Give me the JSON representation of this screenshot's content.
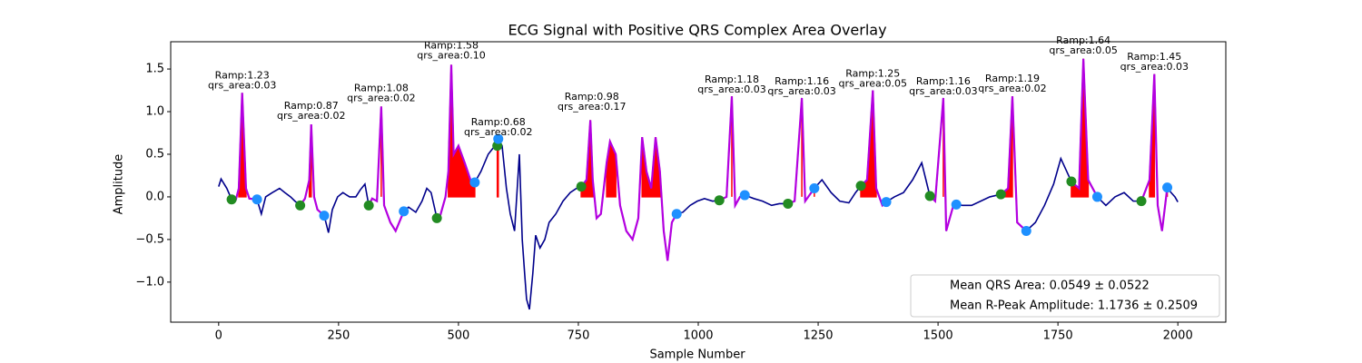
{
  "chart_data": {
    "type": "line",
    "title": "ECG Signal with Positive QRS Complex Area Overlay",
    "x_label": "Sample Number",
    "y_label": "Amplitude",
    "xlim": [
      -100,
      2100
    ],
    "ylim": [
      -1.47,
      1.82
    ],
    "xticks": [
      0,
      250,
      500,
      750,
      1000,
      1250,
      1500,
      1750,
      2000
    ],
    "yticks": [
      {
        "value": -1.0,
        "label": "−1.0"
      },
      {
        "value": -0.5,
        "label": "−0.5"
      },
      {
        "value": 0.0,
        "label": "0.0"
      },
      {
        "value": 0.5,
        "label": "0.5"
      },
      {
        "value": 1.0,
        "label": "1.0"
      },
      {
        "value": 1.5,
        "label": "1.5"
      }
    ],
    "x": [
      0,
      5,
      17,
      27,
      36,
      42,
      49,
      57,
      64,
      80,
      89,
      98,
      112,
      127,
      138,
      150,
      159,
      170,
      180,
      189,
      193,
      199,
      206,
      220,
      229,
      237,
      248,
      259,
      273,
      286,
      295,
      305,
      313,
      320,
      330,
      339,
      345,
      358,
      369,
      386,
      396,
      411,
      424,
      434,
      443,
      455,
      462,
      473,
      479,
      485,
      490,
      500,
      513,
      525,
      534,
      547,
      562,
      576,
      581,
      583,
      591,
      600,
      608,
      617,
      627,
      633,
      638,
      642,
      648,
      655,
      661,
      670,
      680,
      689,
      703,
      718,
      733,
      746,
      756,
      767,
      775,
      780,
      788,
      797,
      809,
      816,
      828,
      837,
      850,
      863,
      875,
      883,
      892,
      902,
      911,
      920,
      928,
      936,
      945,
      955,
      968,
      983,
      998,
      1013,
      1030,
      1044,
      1059,
      1070,
      1077,
      1087,
      1097,
      1116,
      1134,
      1153,
      1169,
      1187,
      1201,
      1216,
      1223,
      1242,
      1258,
      1277,
      1295,
      1314,
      1328,
      1339,
      1352,
      1364,
      1371,
      1384,
      1392,
      1409,
      1428,
      1447,
      1466,
      1483,
      1494,
      1511,
      1517,
      1532,
      1538,
      1551,
      1570,
      1589,
      1608,
      1631,
      1646,
      1655,
      1665,
      1684,
      1703,
      1722,
      1741,
      1756,
      1778,
      1794,
      1803,
      1813,
      1832,
      1850,
      1869,
      1888,
      1907,
      1924,
      1941,
      1951,
      1958,
      1967,
      1978,
      1986,
      1994,
      2000
    ],
    "series": [
      {
        "color": "#00008b",
        "values": [
          0.12,
          0.21,
          0.1,
          -0.03,
          -0.03,
          0.1,
          1.22,
          0.1,
          -0.02,
          -0.03,
          -0.2,
          0.0,
          0.05,
          0.1,
          0.05,
          0.0,
          -0.05,
          -0.1,
          -0.02,
          0.2,
          0.85,
          0.0,
          -0.15,
          -0.22,
          -0.42,
          -0.15,
          0.0,
          0.05,
          0.0,
          0.0,
          0.08,
          0.15,
          -0.1,
          -0.02,
          -0.05,
          1.06,
          -0.1,
          -0.3,
          -0.4,
          -0.17,
          -0.12,
          -0.18,
          -0.05,
          0.1,
          0.05,
          -0.25,
          -0.22,
          0.0,
          0.3,
          1.55,
          0.5,
          0.6,
          0.4,
          0.2,
          0.17,
          0.3,
          0.5,
          0.6,
          0.6,
          0.68,
          0.6,
          0.1,
          -0.2,
          -0.4,
          0.5,
          -0.5,
          -0.9,
          -1.2,
          -1.32,
          -0.9,
          -0.45,
          -0.6,
          -0.5,
          -0.3,
          -0.2,
          -0.05,
          0.05,
          0.1,
          0.12,
          0.2,
          0.9,
          0.2,
          -0.25,
          -0.2,
          0.4,
          0.65,
          0.5,
          -0.1,
          -0.4,
          -0.5,
          -0.25,
          0.7,
          0.3,
          0.1,
          0.7,
          0.3,
          -0.4,
          -0.75,
          -0.3,
          -0.2,
          -0.18,
          -0.1,
          -0.05,
          -0.02,
          -0.05,
          -0.04,
          0.0,
          1.18,
          -0.1,
          0.0,
          0.02,
          -0.02,
          -0.05,
          -0.1,
          -0.08,
          -0.08,
          -0.05,
          1.16,
          -0.05,
          0.1,
          0.2,
          0.05,
          -0.05,
          -0.07,
          0.05,
          0.13,
          0.2,
          1.25,
          0.1,
          -0.1,
          -0.06,
          0.0,
          0.05,
          0.2,
          0.4,
          0.01,
          -0.05,
          1.16,
          -0.4,
          -0.1,
          -0.09,
          -0.1,
          -0.1,
          -0.05,
          0.0,
          0.03,
          0.1,
          1.18,
          -0.3,
          -0.4,
          -0.3,
          -0.1,
          0.15,
          0.45,
          0.18,
          0.1,
          1.62,
          0.2,
          0.0,
          -0.1,
          0.0,
          0.05,
          -0.05,
          -0.05,
          0.2,
          1.44,
          -0.1,
          -0.4,
          0.11,
          0.05,
          0.0,
          -0.06
        ]
      }
    ],
    "qrs_color": "#b400e0",
    "area_color": "#ff0000",
    "onsets": {
      "color": "#228b22",
      "x": [
        27,
        170,
        313,
        455,
        581,
        756,
        1044,
        1187,
        1339,
        1483,
        1631,
        1778,
        1924
      ],
      "values": [
        -0.03,
        -0.1,
        -0.1,
        -0.25,
        0.6,
        0.12,
        -0.04,
        -0.08,
        0.13,
        0.01,
        0.03,
        0.18,
        -0.05
      ]
    },
    "offsets": {
      "color": "#1e90ff",
      "x": [
        80,
        220,
        386,
        534,
        583,
        955,
        1097,
        1242,
        1392,
        1538,
        1684,
        1832,
        1978
      ],
      "values": [
        -0.03,
        -0.22,
        -0.17,
        0.17,
        0.68,
        -0.2,
        0.02,
        0.1,
        -0.06,
        -0.09,
        -0.4,
        0.0,
        0.11
      ]
    },
    "annotations": [
      {
        "x": 49,
        "y": 1.23,
        "texts": [
          "Ramp:1.23",
          "qrs_area:0.03"
        ]
      },
      {
        "x": 193,
        "y": 0.87,
        "texts": [
          "Ramp:0.87",
          "qrs_area:0.02"
        ]
      },
      {
        "x": 339,
        "y": 1.08,
        "texts": [
          "Ramp:1.08",
          "qrs_area:0.02"
        ]
      },
      {
        "x": 485,
        "y": 1.58,
        "texts": [
          "Ramp:1.58",
          "qrs_area:0.10"
        ]
      },
      {
        "x": 583,
        "y": 0.68,
        "texts": [
          "Ramp:0.68",
          "qrs_area:0.02"
        ]
      },
      {
        "x": 778,
        "y": 0.98,
        "texts": [
          "Ramp:0.98",
          "qrs_area:0.17"
        ]
      },
      {
        "x": 1070,
        "y": 1.18,
        "texts": [
          "Ramp:1.18",
          "qrs_area:0.03"
        ]
      },
      {
        "x": 1216,
        "y": 1.16,
        "texts": [
          "Ramp:1.16",
          "qrs_area:0.03"
        ]
      },
      {
        "x": 1364,
        "y": 1.25,
        "texts": [
          "Ramp:1.25",
          "qrs_area:0.05"
        ]
      },
      {
        "x": 1511,
        "y": 1.16,
        "texts": [
          "Ramp:1.16",
          "qrs_area:0.03"
        ]
      },
      {
        "x": 1655,
        "y": 1.19,
        "texts": [
          "Ramp:1.19",
          "qrs_area:0.02"
        ]
      },
      {
        "x": 1803,
        "y": 1.64,
        "texts": [
          "Ramp:1.64",
          "qrs_area:0.05"
        ]
      },
      {
        "x": 1951,
        "y": 1.45,
        "texts": [
          "Ramp:1.45",
          "qrs_area:0.03"
        ]
      }
    ],
    "legend": {
      "loc": "lower right",
      "entries": [
        "Mean QRS Area: 0.0549 ± 0.0522",
        "Mean R-Peak Amplitude: 1.1736 ± 0.2509"
      ]
    }
  }
}
